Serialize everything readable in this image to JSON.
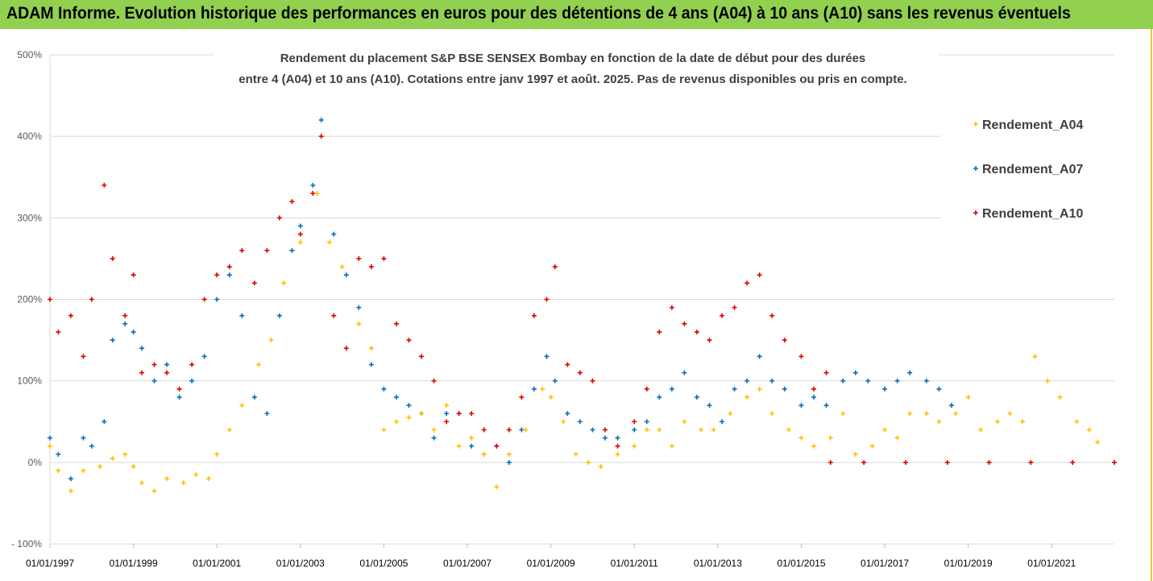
{
  "header": {
    "banner_title": "ADAM Informe. Evolution historique des performances en euros pour des détentions de 4 ans (A04) à 10 ans (A10) sans les revenus éventuels"
  },
  "chart_data": {
    "type": "scatter",
    "title_line1": "Rendement du placement S&P BSE SENSEX Bombay en fonction de la date de début pour des durées",
    "title_line2": "entre 4 (A04) et 10 ans (A10). Cotations entre janv 1997 et août. 2025. Pas de revenus disponibles ou pris en compte.",
    "ylim": [
      -100,
      500
    ],
    "y_ticks": [
      "500%",
      "400%",
      "300%",
      "200%",
      "100%",
      "0%",
      "- 100%"
    ],
    "y_tick_values": [
      500,
      400,
      300,
      200,
      100,
      0,
      -100
    ],
    "x_range": [
      1997.0,
      2022.5
    ],
    "x_ticks": [
      "01/01/1997",
      "01/01/1999",
      "01/01/2001",
      "01/01/2003",
      "01/01/2005",
      "01/01/2007",
      "01/01/2009",
      "01/01/2011",
      "01/01/2013",
      "01/01/2015",
      "01/01/2017",
      "01/01/2019",
      "01/01/2021"
    ],
    "x_tick_values": [
      1997,
      1999,
      2001,
      2003,
      2005,
      2007,
      2009,
      2011,
      2013,
      2015,
      2017,
      2019,
      2021
    ],
    "legend_position": "right",
    "grid": "horizontal",
    "series": [
      {
        "name": "Rendement_A04",
        "color": "#ffc000",
        "points": [
          [
            1997.0,
            20
          ],
          [
            1997.2,
            -10
          ],
          [
            1997.5,
            -35
          ],
          [
            1997.8,
            -10
          ],
          [
            1998.2,
            -5
          ],
          [
            1998.5,
            5
          ],
          [
            1998.8,
            10
          ],
          [
            1999.0,
            -5
          ],
          [
            1999.2,
            -25
          ],
          [
            1999.5,
            -35
          ],
          [
            1999.8,
            -20
          ],
          [
            2000.2,
            -25
          ],
          [
            2000.5,
            -15
          ],
          [
            2000.8,
            -20
          ],
          [
            2001.0,
            10
          ],
          [
            2001.3,
            40
          ],
          [
            2001.6,
            70
          ],
          [
            2002.0,
            120
          ],
          [
            2002.3,
            150
          ],
          [
            2002.6,
            220
          ],
          [
            2003.0,
            270
          ],
          [
            2003.4,
            330
          ],
          [
            2003.7,
            270
          ],
          [
            2004.0,
            240
          ],
          [
            2004.4,
            170
          ],
          [
            2004.7,
            140
          ],
          [
            2005.0,
            40
          ],
          [
            2005.3,
            50
          ],
          [
            2005.6,
            55
          ],
          [
            2005.9,
            60
          ],
          [
            2006.2,
            40
          ],
          [
            2006.5,
            70
          ],
          [
            2006.8,
            20
          ],
          [
            2007.1,
            30
          ],
          [
            2007.4,
            10
          ],
          [
            2007.7,
            -30
          ],
          [
            2008.0,
            10
          ],
          [
            2008.4,
            40
          ],
          [
            2008.8,
            90
          ],
          [
            2009.0,
            80
          ],
          [
            2009.3,
            50
          ],
          [
            2009.6,
            10
          ],
          [
            2009.9,
            0
          ],
          [
            2010.2,
            -5
          ],
          [
            2010.6,
            10
          ],
          [
            2011.0,
            20
          ],
          [
            2011.3,
            40
          ],
          [
            2011.6,
            40
          ],
          [
            2011.9,
            20
          ],
          [
            2012.2,
            50
          ],
          [
            2012.6,
            40
          ],
          [
            2012.9,
            40
          ],
          [
            2013.3,
            60
          ],
          [
            2013.7,
            80
          ],
          [
            2014.0,
            90
          ],
          [
            2014.3,
            60
          ],
          [
            2014.7,
            40
          ],
          [
            2015.0,
            30
          ],
          [
            2015.3,
            20
          ],
          [
            2015.7,
            30
          ],
          [
            2016.0,
            60
          ],
          [
            2016.3,
            10
          ],
          [
            2016.7,
            20
          ],
          [
            2017.0,
            40
          ],
          [
            2017.3,
            30
          ],
          [
            2017.6,
            60
          ],
          [
            2018.0,
            60
          ],
          [
            2018.3,
            50
          ],
          [
            2018.7,
            60
          ],
          [
            2019.0,
            80
          ],
          [
            2019.3,
            40
          ],
          [
            2019.7,
            50
          ],
          [
            2020.0,
            60
          ],
          [
            2020.3,
            50
          ],
          [
            2020.6,
            130
          ],
          [
            2020.9,
            100
          ],
          [
            2021.2,
            80
          ],
          [
            2021.6,
            50
          ],
          [
            2021.9,
            40
          ],
          [
            2022.1,
            25
          ]
        ]
      },
      {
        "name": "Rendement_A07",
        "color": "#0070c0",
        "points": [
          [
            1997.0,
            30
          ],
          [
            1997.2,
            10
          ],
          [
            1997.5,
            -20
          ],
          [
            1997.8,
            30
          ],
          [
            1998.0,
            20
          ],
          [
            1998.3,
            50
          ],
          [
            1998.5,
            150
          ],
          [
            1998.8,
            170
          ],
          [
            1999.0,
            160
          ],
          [
            1999.2,
            140
          ],
          [
            1999.5,
            100
          ],
          [
            1999.8,
            120
          ],
          [
            2000.1,
            80
          ],
          [
            2000.4,
            100
          ],
          [
            2000.7,
            130
          ],
          [
            2001.0,
            200
          ],
          [
            2001.3,
            230
          ],
          [
            2001.6,
            180
          ],
          [
            2001.9,
            80
          ],
          [
            2002.2,
            60
          ],
          [
            2002.5,
            180
          ],
          [
            2002.8,
            260
          ],
          [
            2003.0,
            290
          ],
          [
            2003.3,
            340
          ],
          [
            2003.5,
            420
          ],
          [
            2003.8,
            280
          ],
          [
            2004.1,
            230
          ],
          [
            2004.4,
            190
          ],
          [
            2004.7,
            120
          ],
          [
            2005.0,
            90
          ],
          [
            2005.3,
            80
          ],
          [
            2005.6,
            70
          ],
          [
            2005.9,
            60
          ],
          [
            2006.2,
            30
          ],
          [
            2006.5,
            60
          ],
          [
            2006.8,
            60
          ],
          [
            2007.1,
            20
          ],
          [
            2007.4,
            10
          ],
          [
            2007.7,
            20
          ],
          [
            2008.0,
            0
          ],
          [
            2008.3,
            40
          ],
          [
            2008.6,
            90
          ],
          [
            2008.9,
            130
          ],
          [
            2009.1,
            100
          ],
          [
            2009.4,
            60
          ],
          [
            2009.7,
            50
          ],
          [
            2010.0,
            40
          ],
          [
            2010.3,
            30
          ],
          [
            2010.6,
            30
          ],
          [
            2011.0,
            40
          ],
          [
            2011.3,
            50
          ],
          [
            2011.6,
            80
          ],
          [
            2011.9,
            90
          ],
          [
            2012.2,
            110
          ],
          [
            2012.5,
            80
          ],
          [
            2012.8,
            70
          ],
          [
            2013.1,
            50
          ],
          [
            2013.4,
            90
          ],
          [
            2013.7,
            100
          ],
          [
            2014.0,
            130
          ],
          [
            2014.3,
            100
          ],
          [
            2014.6,
            90
          ],
          [
            2015.0,
            70
          ],
          [
            2015.3,
            80
          ],
          [
            2015.6,
            70
          ],
          [
            2016.0,
            100
          ],
          [
            2016.3,
            110
          ],
          [
            2016.6,
            100
          ],
          [
            2017.0,
            90
          ],
          [
            2017.3,
            100
          ],
          [
            2017.6,
            110
          ],
          [
            2018.0,
            100
          ],
          [
            2018.3,
            90
          ],
          [
            2018.6,
            70
          ]
        ]
      },
      {
        "name": "Rendement_A10",
        "color": "#e00000",
        "points": [
          [
            1997.0,
            200
          ],
          [
            1997.2,
            160
          ],
          [
            1997.5,
            180
          ],
          [
            1997.8,
            130
          ],
          [
            1998.0,
            200
          ],
          [
            1998.3,
            340
          ],
          [
            1998.5,
            250
          ],
          [
            1998.8,
            180
          ],
          [
            1999.0,
            230
          ],
          [
            1999.2,
            110
          ],
          [
            1999.5,
            120
          ],
          [
            1999.8,
            110
          ],
          [
            2000.1,
            90
          ],
          [
            2000.4,
            120
          ],
          [
            2000.7,
            200
          ],
          [
            2001.0,
            230
          ],
          [
            2001.3,
            240
          ],
          [
            2001.6,
            260
          ],
          [
            2001.9,
            220
          ],
          [
            2002.2,
            260
          ],
          [
            2002.5,
            300
          ],
          [
            2002.8,
            320
          ],
          [
            2003.0,
            280
          ],
          [
            2003.3,
            330
          ],
          [
            2003.5,
            400
          ],
          [
            2003.8,
            180
          ],
          [
            2004.1,
            140
          ],
          [
            2004.4,
            250
          ],
          [
            2004.7,
            240
          ],
          [
            2005.0,
            250
          ],
          [
            2005.3,
            170
          ],
          [
            2005.6,
            150
          ],
          [
            2005.9,
            130
          ],
          [
            2006.2,
            100
          ],
          [
            2006.5,
            50
          ],
          [
            2006.8,
            60
          ],
          [
            2007.1,
            60
          ],
          [
            2007.4,
            40
          ],
          [
            2007.7,
            20
          ],
          [
            2008.0,
            40
          ],
          [
            2008.3,
            80
          ],
          [
            2008.6,
            180
          ],
          [
            2008.9,
            200
          ],
          [
            2009.1,
            240
          ],
          [
            2009.4,
            120
          ],
          [
            2009.7,
            110
          ],
          [
            2010.0,
            100
          ],
          [
            2010.3,
            40
          ],
          [
            2010.6,
            20
          ],
          [
            2011.0,
            50
          ],
          [
            2011.3,
            90
          ],
          [
            2011.6,
            160
          ],
          [
            2011.9,
            190
          ],
          [
            2012.2,
            170
          ],
          [
            2012.5,
            160
          ],
          [
            2012.8,
            150
          ],
          [
            2013.1,
            180
          ],
          [
            2013.4,
            190
          ],
          [
            2013.7,
            220
          ],
          [
            2014.0,
            230
          ],
          [
            2014.3,
            180
          ],
          [
            2014.6,
            150
          ],
          [
            2015.0,
            130
          ],
          [
            2015.3,
            90
          ],
          [
            2015.6,
            110
          ],
          [
            2015.7,
            0
          ],
          [
            2016.5,
            0
          ],
          [
            2017.5,
            0
          ],
          [
            2018.5,
            0
          ],
          [
            2019.5,
            0
          ],
          [
            2020.5,
            0
          ],
          [
            2021.5,
            0
          ],
          [
            2022.5,
            0
          ]
        ]
      }
    ]
  }
}
